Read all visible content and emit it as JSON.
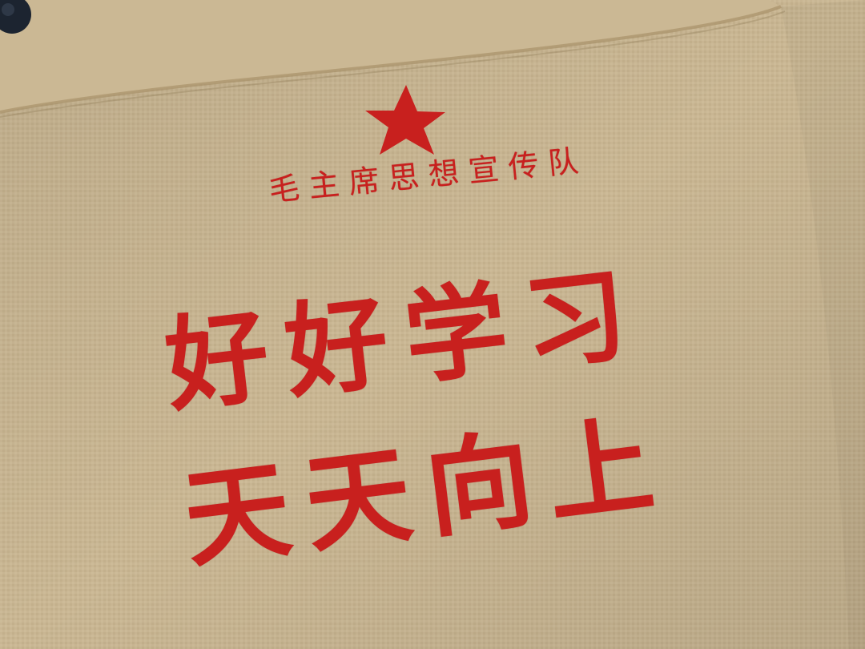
{
  "scene": {
    "description_label": "canvas bag printed panel",
    "colors": {
      "canvas": "#c9b693",
      "canvas_shadow": "#b9a47f",
      "flap": "#cbb894",
      "ink_red": "#c8201e",
      "snap_button": "#1c2430"
    },
    "icons": [
      "star-icon",
      "snap-button-icon"
    ]
  },
  "print": {
    "subtitle": "毛主席思想宣传队",
    "slogan_line1": "好好学习",
    "slogan_line2": "天天向上"
  }
}
